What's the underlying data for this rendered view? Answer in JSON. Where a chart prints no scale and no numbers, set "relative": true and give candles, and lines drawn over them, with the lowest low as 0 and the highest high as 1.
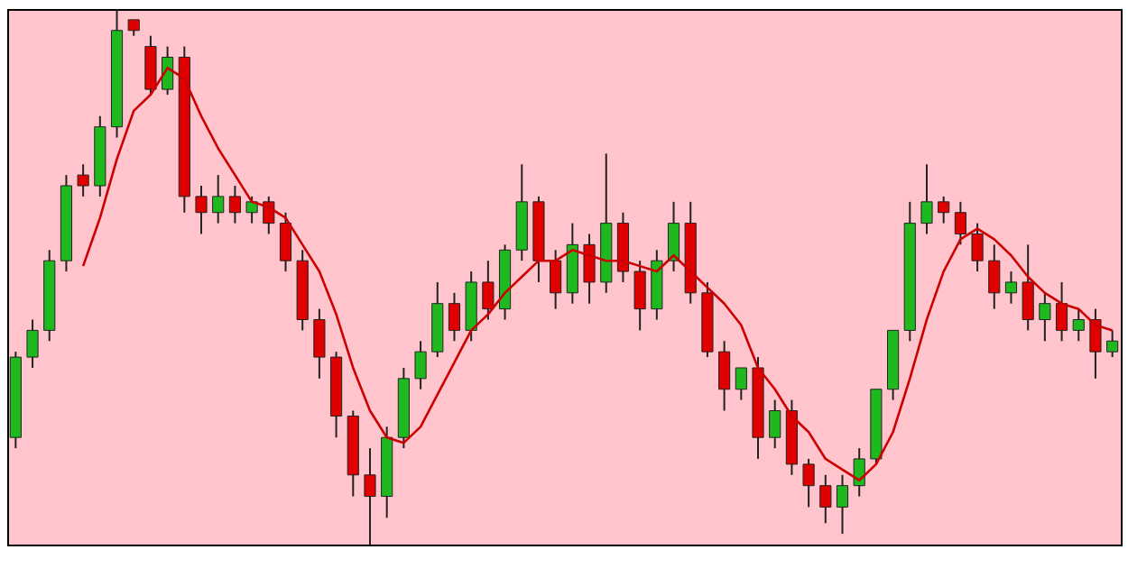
{
  "chart_data": {
    "type": "candlestick",
    "relative": true,
    "marker": "none",
    "categories": [
      null,
      null,
      null,
      null,
      null,
      null,
      null,
      null,
      null,
      null,
      null,
      null,
      null,
      null,
      null,
      null,
      null,
      null,
      null,
      null,
      null,
      null,
      null,
      null,
      null,
      null,
      null,
      null,
      null,
      null,
      null,
      null,
      null,
      null,
      null,
      null,
      null,
      null,
      null,
      null,
      null,
      null,
      null,
      null,
      null,
      null,
      null,
      null,
      null,
      null,
      null,
      null,
      null,
      null,
      null,
      null,
      null,
      null,
      null,
      null,
      null,
      null,
      null,
      null,
      null,
      null
    ],
    "ohlc": [
      [
        0.2,
        0.36,
        0.18,
        0.35
      ],
      [
        0.35,
        0.42,
        0.33,
        0.4
      ],
      [
        0.4,
        0.55,
        0.38,
        0.53
      ],
      [
        0.53,
        0.69,
        0.51,
        0.67
      ],
      [
        0.69,
        0.71,
        0.65,
        0.67
      ],
      [
        0.67,
        0.8,
        0.65,
        0.78
      ],
      [
        0.78,
        1.0,
        0.76,
        0.96
      ],
      [
        0.98,
        0.98,
        0.95,
        0.96
      ],
      [
        0.93,
        0.95,
        0.84,
        0.85
      ],
      [
        0.85,
        0.93,
        0.84,
        0.91
      ],
      [
        0.91,
        0.93,
        0.62,
        0.65
      ],
      [
        0.65,
        0.67,
        0.58,
        0.62
      ],
      [
        0.62,
        0.69,
        0.6,
        0.65
      ],
      [
        0.65,
        0.67,
        0.6,
        0.62
      ],
      [
        0.62,
        0.65,
        0.6,
        0.64
      ],
      [
        0.64,
        0.65,
        0.58,
        0.6
      ],
      [
        0.6,
        0.62,
        0.51,
        0.53
      ],
      [
        0.53,
        0.55,
        0.4,
        0.42
      ],
      [
        0.42,
        0.44,
        0.31,
        0.35
      ],
      [
        0.35,
        0.36,
        0.2,
        0.24
      ],
      [
        0.24,
        0.25,
        0.09,
        0.13
      ],
      [
        0.13,
        0.18,
        0.0,
        0.09
      ],
      [
        0.09,
        0.22,
        0.05,
        0.2
      ],
      [
        0.2,
        0.33,
        0.18,
        0.31
      ],
      [
        0.31,
        0.38,
        0.29,
        0.36
      ],
      [
        0.36,
        0.49,
        0.35,
        0.45
      ],
      [
        0.45,
        0.47,
        0.38,
        0.4
      ],
      [
        0.4,
        0.51,
        0.38,
        0.49
      ],
      [
        0.49,
        0.53,
        0.42,
        0.44
      ],
      [
        0.44,
        0.56,
        0.42,
        0.55
      ],
      [
        0.55,
        0.71,
        0.53,
        0.64
      ],
      [
        0.64,
        0.65,
        0.49,
        0.53
      ],
      [
        0.53,
        0.55,
        0.44,
        0.47
      ],
      [
        0.47,
        0.6,
        0.45,
        0.56
      ],
      [
        0.56,
        0.58,
        0.45,
        0.49
      ],
      [
        0.49,
        0.73,
        0.47,
        0.6
      ],
      [
        0.6,
        0.62,
        0.49,
        0.51
      ],
      [
        0.51,
        0.53,
        0.4,
        0.44
      ],
      [
        0.44,
        0.55,
        0.42,
        0.53
      ],
      [
        0.53,
        0.64,
        0.51,
        0.6
      ],
      [
        0.6,
        0.64,
        0.45,
        0.47
      ],
      [
        0.47,
        0.49,
        0.35,
        0.36
      ],
      [
        0.36,
        0.38,
        0.25,
        0.29
      ],
      [
        0.29,
        0.33,
        0.27,
        0.33
      ],
      [
        0.33,
        0.35,
        0.16,
        0.2
      ],
      [
        0.2,
        0.27,
        0.18,
        0.25
      ],
      [
        0.25,
        0.27,
        0.13,
        0.15
      ],
      [
        0.15,
        0.16,
        0.07,
        0.11
      ],
      [
        0.11,
        0.13,
        0.04,
        0.07
      ],
      [
        0.07,
        0.13,
        0.02,
        0.11
      ],
      [
        0.11,
        0.18,
        0.09,
        0.16
      ],
      [
        0.16,
        0.29,
        0.15,
        0.29
      ],
      [
        0.29,
        0.4,
        0.27,
        0.4
      ],
      [
        0.4,
        0.64,
        0.38,
        0.6
      ],
      [
        0.6,
        0.71,
        0.58,
        0.64
      ],
      [
        0.64,
        0.65,
        0.6,
        0.62
      ],
      [
        0.62,
        0.64,
        0.56,
        0.58
      ],
      [
        0.58,
        0.6,
        0.51,
        0.53
      ],
      [
        0.53,
        0.56,
        0.44,
        0.47
      ],
      [
        0.47,
        0.51,
        0.45,
        0.49
      ],
      [
        0.49,
        0.56,
        0.4,
        0.42
      ],
      [
        0.42,
        0.47,
        0.38,
        0.45
      ],
      [
        0.45,
        0.49,
        0.38,
        0.4
      ],
      [
        0.4,
        0.44,
        0.38,
        0.42
      ],
      [
        0.42,
        0.44,
        0.31,
        0.36
      ],
      [
        0.36,
        0.4,
        0.35,
        0.38
      ]
    ],
    "series": [
      {
        "type": "line",
        "color": "#cc0000",
        "values": [
          null,
          null,
          null,
          null,
          0.52,
          0.61,
          0.72,
          0.81,
          0.84,
          0.89,
          0.87,
          0.8,
          0.74,
          0.69,
          0.64,
          0.63,
          0.61,
          0.56,
          0.51,
          0.43,
          0.33,
          0.25,
          0.2,
          0.19,
          0.22,
          0.28,
          0.34,
          0.4,
          0.43,
          0.47,
          0.5,
          0.53,
          0.53,
          0.55,
          0.54,
          0.53,
          0.53,
          0.52,
          0.51,
          0.54,
          0.51,
          0.48,
          0.45,
          0.41,
          0.33,
          0.29,
          0.24,
          0.21,
          0.16,
          0.14,
          0.12,
          0.15,
          0.21,
          0.31,
          0.42,
          0.51,
          0.57,
          0.59,
          0.57,
          0.54,
          0.5,
          0.47,
          0.45,
          0.44,
          0.41,
          0.4
        ]
      }
    ]
  }
}
